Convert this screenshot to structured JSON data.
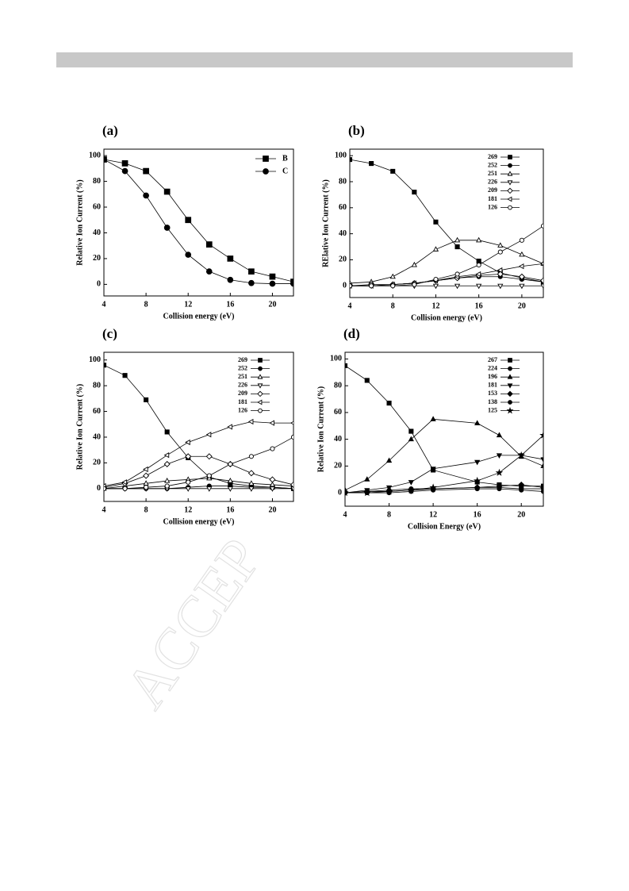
{
  "watermark": "ACCEP",
  "chart_data": [
    {
      "type": "line",
      "title": "(a)",
      "x_label": "Collision energy (eV)",
      "y_label": "Relative Ion Current (%)",
      "x": [
        4,
        6,
        8,
        10,
        12,
        14,
        16,
        18,
        20,
        22
      ],
      "xlim": [
        4,
        22
      ],
      "xticks": [
        4,
        8,
        12,
        16,
        20
      ],
      "ylim": [
        -9,
        105
      ],
      "yticks": [
        0,
        20,
        40,
        60,
        80,
        100
      ],
      "legend": "upper right",
      "series": [
        {
          "name": "B",
          "color": "#000000",
          "marker": "square",
          "filled": true,
          "values": [
            97,
            94,
            88,
            72,
            50,
            31,
            20,
            10,
            6,
            2
          ]
        },
        {
          "name": "C",
          "color": "#000000",
          "marker": "circle",
          "filled": true,
          "values": [
            97,
            88,
            69,
            44,
            23,
            10,
            3.5,
            1,
            0.5,
            0.5
          ]
        }
      ]
    },
    {
      "type": "line",
      "title": "(b)",
      "x_label": "Collision energy (eV)",
      "y_label": "RElative Ion Current (%)",
      "x": [
        4,
        6,
        8,
        10,
        12,
        14,
        16,
        18,
        20,
        22
      ],
      "xlim": [
        4,
        22
      ],
      "xticks": [
        4,
        8,
        12,
        16,
        20
      ],
      "ylim": [
        -9,
        105
      ],
      "yticks": [
        0,
        20,
        40,
        60,
        80,
        100
      ],
      "legend": "upper right",
      "series": [
        {
          "name": "269",
          "color": "#000000",
          "marker": "square",
          "filled": true,
          "values": [
            97,
            94,
            88,
            72,
            49,
            30,
            19,
            10,
            6,
            3
          ]
        },
        {
          "name": "252",
          "color": "#000000",
          "marker": "circle",
          "filled": true,
          "values": [
            0,
            0,
            1,
            2,
            4,
            6,
            7,
            7,
            5,
            3
          ]
        },
        {
          "name": "251",
          "color": "#000000",
          "marker": "triangle-up",
          "filled": false,
          "values": [
            2,
            3,
            7,
            16,
            28,
            35,
            35,
            31,
            24,
            17
          ]
        },
        {
          "name": "226",
          "color": "#000000",
          "marker": "triangle-down",
          "filled": false,
          "values": [
            0,
            0,
            0,
            0,
            0,
            0,
            0,
            0,
            0,
            0
          ]
        },
        {
          "name": "209",
          "color": "#000000",
          "marker": "diamond",
          "filled": false,
          "values": [
            0,
            1,
            1,
            2,
            4,
            6,
            8,
            9,
            7,
            4
          ]
        },
        {
          "name": "181",
          "color": "#000000",
          "marker": "triangle-left",
          "filled": false,
          "values": [
            0,
            0,
            1,
            2,
            4,
            7,
            9,
            12,
            15,
            17
          ]
        },
        {
          "name": "126",
          "color": "#000000",
          "marker": "circle",
          "filled": false,
          "values": [
            0,
            0,
            0,
            1,
            5,
            9,
            16,
            26,
            35,
            46
          ]
        }
      ]
    },
    {
      "type": "line",
      "title": "(c)",
      "x_label": "Collision energy (eV)",
      "y_label": "Relative Ion Current (%)",
      "x": [
        4,
        6,
        8,
        10,
        12,
        14,
        16,
        18,
        20,
        22
      ],
      "xlim": [
        4,
        22
      ],
      "xticks": [
        4,
        8,
        12,
        16,
        20
      ],
      "ylim": [
        -10,
        106
      ],
      "yticks": [
        0,
        20,
        40,
        60,
        80,
        100
      ],
      "legend": "upper right",
      "series": [
        {
          "name": "269",
          "color": "#000000",
          "marker": "square",
          "filled": true,
          "values": [
            96,
            88,
            69,
            44,
            24,
            9,
            4,
            2,
            1,
            0
          ]
        },
        {
          "name": "252",
          "color": "#000000",
          "marker": "circle",
          "filled": true,
          "values": [
            0,
            0,
            0,
            0,
            1,
            2,
            2,
            1,
            1,
            0
          ]
        },
        {
          "name": "251",
          "color": "#000000",
          "marker": "triangle-up",
          "filled": false,
          "values": [
            0,
            2,
            4,
            6,
            7,
            8,
            6,
            4,
            3,
            2
          ]
        },
        {
          "name": "226",
          "color": "#000000",
          "marker": "triangle-down",
          "filled": false,
          "values": [
            0,
            0,
            0,
            0,
            0,
            0,
            0,
            0,
            0,
            0
          ]
        },
        {
          "name": "209",
          "color": "#000000",
          "marker": "diamond",
          "filled": false,
          "values": [
            1,
            4,
            10,
            19,
            25,
            25,
            19,
            12,
            7,
            3
          ]
        },
        {
          "name": "181",
          "color": "#000000",
          "marker": "triangle-left",
          "filled": false,
          "values": [
            2,
            5,
            15,
            26,
            36,
            42,
            48,
            52,
            51,
            51
          ]
        },
        {
          "name": "126",
          "color": "#000000",
          "marker": "circle",
          "filled": false,
          "values": [
            0,
            0,
            1,
            2,
            5,
            10,
            19,
            25,
            31,
            40
          ]
        }
      ]
    },
    {
      "type": "line",
      "title": "(d)",
      "x_label": "Collision Energy (eV)",
      "y_label": "Relative Ion Current (%)",
      "x": [
        4,
        6,
        8,
        10,
        12,
        16,
        18,
        20,
        22
      ],
      "xlim": [
        4,
        22
      ],
      "xticks": [
        4,
        8,
        12,
        16,
        20
      ],
      "ylim": [
        -10,
        105
      ],
      "yticks": [
        0,
        20,
        40,
        60,
        80,
        100
      ],
      "legend": "upper right",
      "series": [
        {
          "name": "267",
          "color": "#000000",
          "marker": "square",
          "filled": true,
          "values": [
            95,
            84,
            67,
            46,
            17,
            8,
            6,
            5,
            5
          ]
        },
        {
          "name": "224",
          "color": "#000000",
          "marker": "circle",
          "filled": true,
          "values": [
            0,
            1,
            2,
            3,
            3,
            4,
            4,
            3,
            3
          ]
        },
        {
          "name": "196",
          "color": "#000000",
          "marker": "triangle-up",
          "filled": true,
          "values": [
            2,
            10,
            24,
            40,
            55,
            52,
            43,
            27,
            20
          ]
        },
        {
          "name": "181",
          "color": "#000000",
          "marker": "triangle-down",
          "filled": true,
          "values": [
            0,
            2,
            4,
            8,
            18,
            23,
            28,
            28,
            25
          ]
        },
        {
          "name": "153",
          "color": "#000000",
          "marker": "diamond",
          "filled": true,
          "values": [
            0,
            1,
            1,
            2,
            3,
            4,
            5,
            6,
            4
          ]
        },
        {
          "name": "138",
          "color": "#000000",
          "marker": "circle",
          "filled": true,
          "values": [
            0,
            0,
            0,
            1,
            2,
            3,
            3,
            2,
            1
          ]
        },
        {
          "name": "125",
          "color": "#000000",
          "marker": "star",
          "filled": true,
          "values": [
            0,
            0,
            1,
            2,
            4,
            9,
            15,
            28,
            43
          ]
        }
      ]
    }
  ]
}
